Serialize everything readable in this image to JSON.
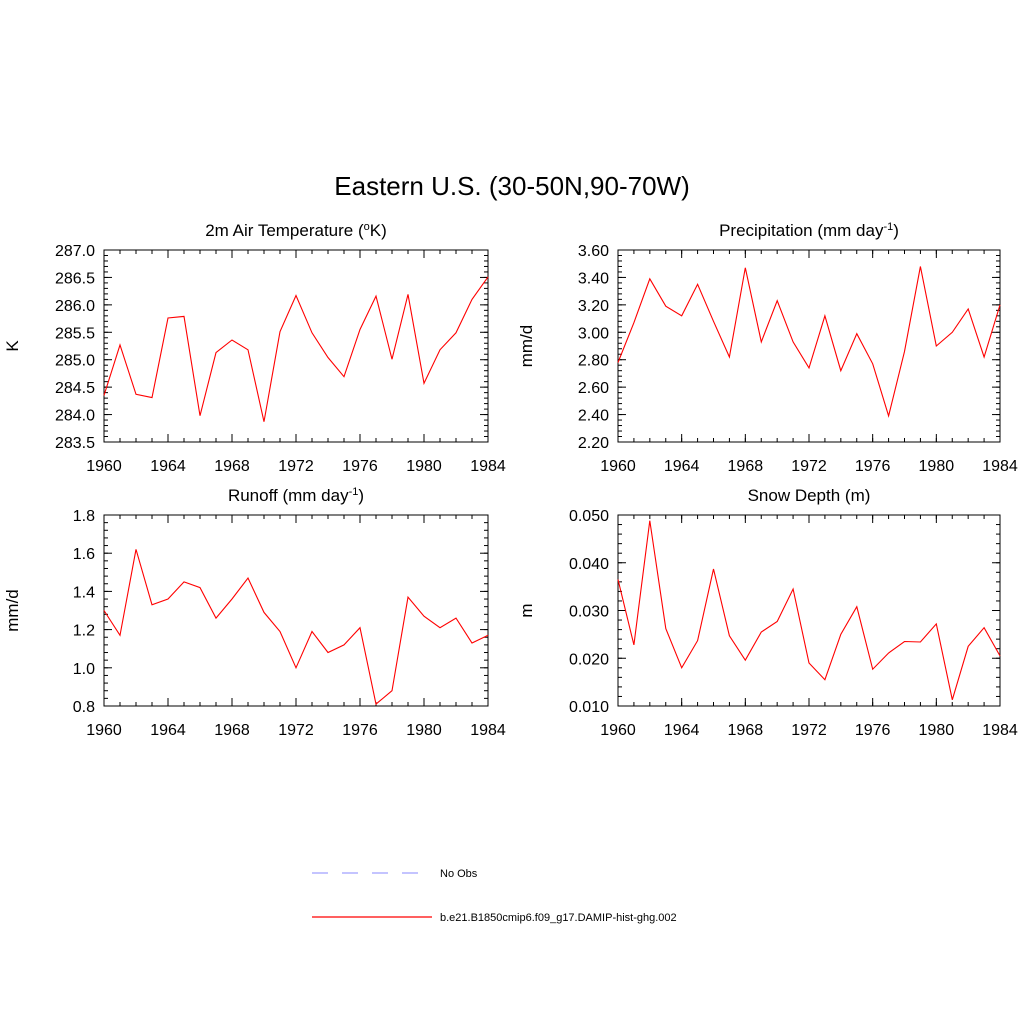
{
  "title": "Eastern U.S. (30-50N,90-70W)",
  "colors": {
    "model": "#ff0000",
    "obs": "#a0a0ff",
    "axis": "#000000"
  },
  "legend": {
    "obs_label": "No Obs",
    "model_label": "b.e21.B1850cmip6.f09_g17.DAMIP-hist-ghg.002"
  },
  "chart_data": [
    {
      "type": "line",
      "title": "2m Air Temperature (",
      "title_sup": "o",
      "title_end": "K)",
      "ylabel": "K",
      "xlim": [
        1960,
        1984
      ],
      "ylim": [
        283.5,
        287.0
      ],
      "xticks": [
        1960,
        1964,
        1968,
        1972,
        1976,
        1980,
        1984
      ],
      "xtick_labels": [
        "1960",
        "1964",
        "1968",
        "1972",
        "1976",
        "1980",
        "1984"
      ],
      "yticks": [
        283.5,
        284.0,
        284.5,
        285.0,
        285.5,
        286.0,
        286.5,
        287.0
      ],
      "ytick_labels": [
        "283.5",
        "284.0",
        "284.5",
        "285.0",
        "285.5",
        "286.0",
        "286.5",
        "287.0"
      ],
      "x": [
        1960,
        1961,
        1962,
        1963,
        1964,
        1965,
        1966,
        1967,
        1968,
        1969,
        1970,
        1971,
        1972,
        1973,
        1974,
        1975,
        1976,
        1977,
        1978,
        1979,
        1980,
        1981,
        1982,
        1983,
        1984
      ],
      "series": [
        {
          "values": [
            284.35,
            285.27,
            284.37,
            284.31,
            285.76,
            285.79,
            283.98,
            285.13,
            285.36,
            285.18,
            283.87,
            285.51,
            286.17,
            285.49,
            285.04,
            284.69,
            285.55,
            286.16,
            285.01,
            286.19,
            284.57,
            285.18,
            285.49,
            286.1,
            286.51
          ]
        }
      ]
    },
    {
      "type": "line",
      "title": "Precipitation (mm day",
      "title_sup": "-1",
      "title_end": ")",
      "ylabel": "mm/d",
      "xlim": [
        1960,
        1984
      ],
      "ylim": [
        2.2,
        3.6
      ],
      "xticks": [
        1960,
        1964,
        1968,
        1972,
        1976,
        1980,
        1984
      ],
      "xtick_labels": [
        "1960",
        "1964",
        "1968",
        "1972",
        "1976",
        "1980",
        "1984"
      ],
      "yticks": [
        2.2,
        2.4,
        2.6,
        2.8,
        3.0,
        3.2,
        3.4,
        3.6
      ],
      "ytick_labels": [
        "2.20",
        "2.40",
        "2.60",
        "2.80",
        "3.00",
        "3.20",
        "3.40",
        "3.60"
      ],
      "x": [
        1960,
        1961,
        1962,
        1963,
        1964,
        1965,
        1966,
        1967,
        1968,
        1969,
        1970,
        1971,
        1972,
        1973,
        1974,
        1975,
        1976,
        1977,
        1978,
        1979,
        1980,
        1981,
        1982,
        1983,
        1984
      ],
      "series": [
        {
          "values": [
            2.78,
            3.07,
            3.39,
            3.19,
            3.12,
            3.35,
            3.08,
            2.82,
            3.47,
            2.93,
            3.23,
            2.93,
            2.74,
            3.12,
            2.72,
            2.99,
            2.77,
            2.39,
            2.86,
            3.48,
            2.9,
            3.0,
            3.17,
            2.82,
            3.2
          ]
        }
      ]
    },
    {
      "type": "line",
      "title": "Runoff (mm day",
      "title_sup": "-1",
      "title_end": ")",
      "ylabel": "mm/d",
      "xlim": [
        1960,
        1984
      ],
      "ylim": [
        0.8,
        1.8
      ],
      "xticks": [
        1960,
        1964,
        1968,
        1972,
        1976,
        1980,
        1984
      ],
      "xtick_labels": [
        "1960",
        "1964",
        "1968",
        "1972",
        "1976",
        "1980",
        "1984"
      ],
      "yticks": [
        0.8,
        1.0,
        1.2,
        1.4,
        1.6,
        1.8
      ],
      "ytick_labels": [
        "0.8",
        "1.0",
        "1.2",
        "1.4",
        "1.6",
        "1.8"
      ],
      "x": [
        1960,
        1961,
        1962,
        1963,
        1964,
        1965,
        1966,
        1967,
        1968,
        1969,
        1970,
        1971,
        1972,
        1973,
        1974,
        1975,
        1976,
        1977,
        1978,
        1979,
        1980,
        1981,
        1982,
        1983,
        1984
      ],
      "series": [
        {
          "values": [
            1.3,
            1.17,
            1.62,
            1.33,
            1.36,
            1.45,
            1.42,
            1.26,
            1.36,
            1.47,
            1.29,
            1.19,
            1.0,
            1.19,
            1.08,
            1.12,
            1.21,
            0.81,
            0.88,
            1.37,
            1.27,
            1.21,
            1.26,
            1.13,
            1.17
          ]
        }
      ]
    },
    {
      "type": "line",
      "title": "Snow Depth (m)",
      "title_sup": "",
      "title_end": "",
      "ylabel": "m",
      "xlim": [
        1960,
        1984
      ],
      "ylim": [
        0.01,
        0.05
      ],
      "xticks": [
        1960,
        1964,
        1968,
        1972,
        1976,
        1980,
        1984
      ],
      "xtick_labels": [
        "1960",
        "1964",
        "1968",
        "1972",
        "1976",
        "1980",
        "1984"
      ],
      "yticks": [
        0.01,
        0.02,
        0.03,
        0.04,
        0.05
      ],
      "ytick_labels": [
        "0.010",
        "0.020",
        "0.030",
        "0.040",
        "0.050"
      ],
      "x": [
        1960,
        1961,
        1962,
        1963,
        1964,
        1965,
        1966,
        1967,
        1968,
        1969,
        1970,
        1971,
        1972,
        1973,
        1974,
        1975,
        1976,
        1977,
        1978,
        1979,
        1980,
        1981,
        1982,
        1983,
        1984
      ],
      "series": [
        {
          "values": [
            0.0365,
            0.0228,
            0.0488,
            0.0262,
            0.018,
            0.0237,
            0.0387,
            0.0247,
            0.0196,
            0.0255,
            0.0277,
            0.0345,
            0.019,
            0.0155,
            0.025,
            0.0308,
            0.0177,
            0.0211,
            0.0235,
            0.0234,
            0.0272,
            0.0113,
            0.0225,
            0.0264,
            0.0205
          ]
        }
      ]
    }
  ]
}
